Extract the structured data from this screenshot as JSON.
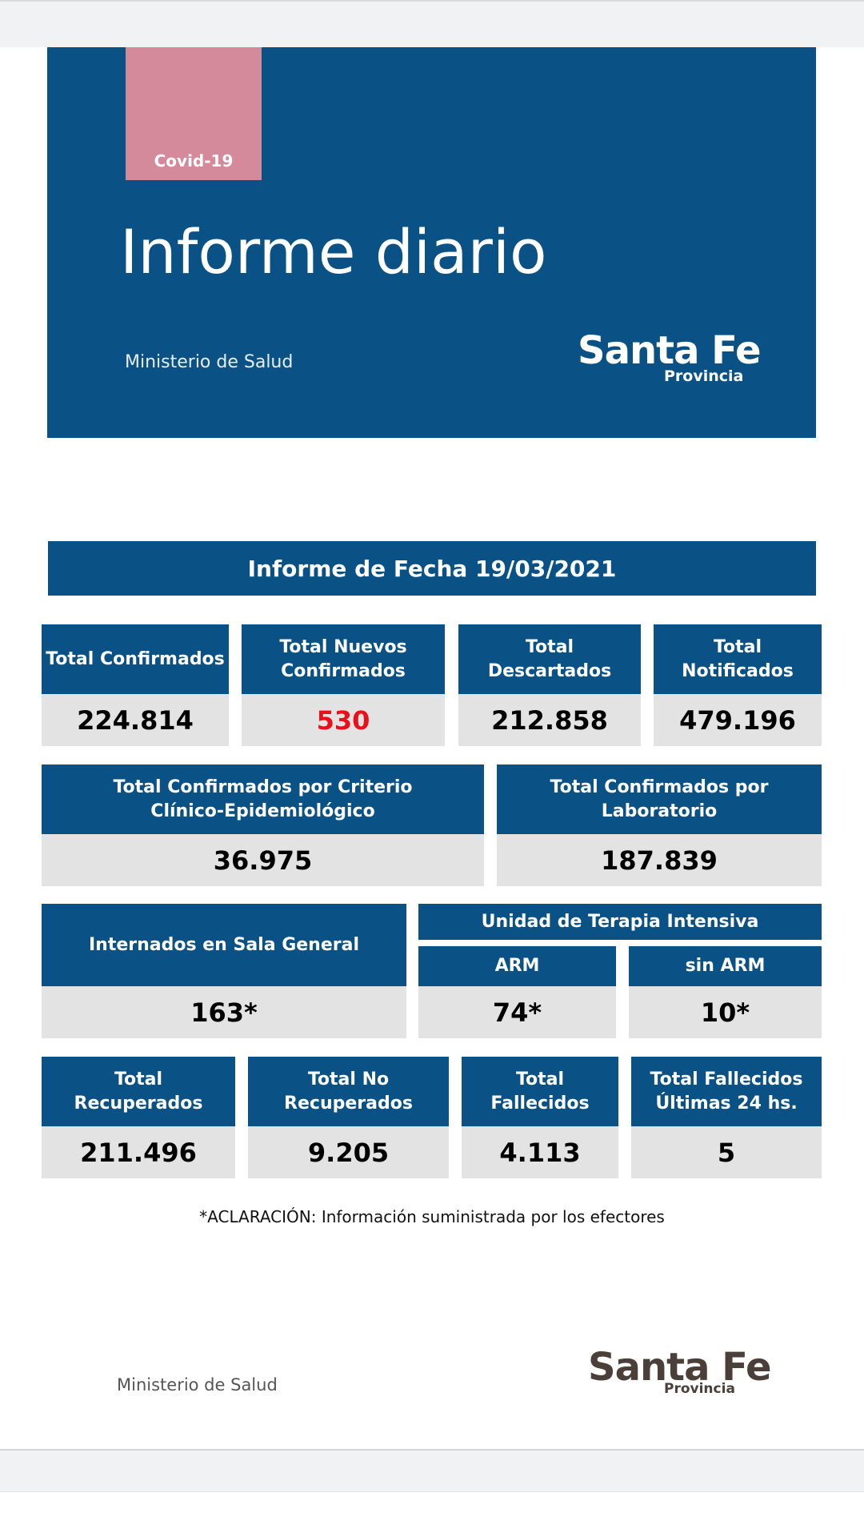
{
  "header": {
    "tag": "Covid-19",
    "title": "Informe diario",
    "ministry": "Ministerio de Salud",
    "logo_main": "Santa Fe",
    "logo_sub": "Provincia"
  },
  "report_date_label": "Informe de Fecha 19/03/2021",
  "row1": [
    {
      "label": "Total Confirmados",
      "value": "224.814"
    },
    {
      "label": "Total Nuevos Confirmados",
      "value": "530"
    },
    {
      "label": "Total Descartados",
      "value": "212.858"
    },
    {
      "label": "Total Notificados",
      "value": "479.196"
    }
  ],
  "row2": [
    {
      "label": "Total Confirmados por Criterio Clínico-Epidemiológico",
      "value": "36.975"
    },
    {
      "label": "Total Confirmados por Laboratorio",
      "value": "187.839"
    }
  ],
  "row3": {
    "general": {
      "label": "Internados en Sala General",
      "value": "163*"
    },
    "uti_label": "Unidad de Terapia Intensiva",
    "arm": {
      "label": "ARM",
      "value": "74*"
    },
    "sin_arm": {
      "label": "sin ARM",
      "value": "10*"
    }
  },
  "row4": [
    {
      "label": "Total Recuperados",
      "value": "211.496"
    },
    {
      "label": "Total No Recuperados",
      "value": "9.205"
    },
    {
      "label": "Total Fallecidos",
      "value": "4.113"
    },
    {
      "label": "Total Fallecidos Últimas 24 hs.",
      "value": "5"
    }
  ],
  "footnote": "*ACLARACIÓN: Información suministrada por los efectores",
  "footer": {
    "ministry": "Ministerio de Salud",
    "logo_main": "Santa Fe",
    "logo_sub": "Provincia"
  },
  "colors": {
    "primary": "#0a5286",
    "accent_tag": "#d48a9b",
    "highlight": "#e8101a",
    "value_bg": "#e3e3e3"
  }
}
